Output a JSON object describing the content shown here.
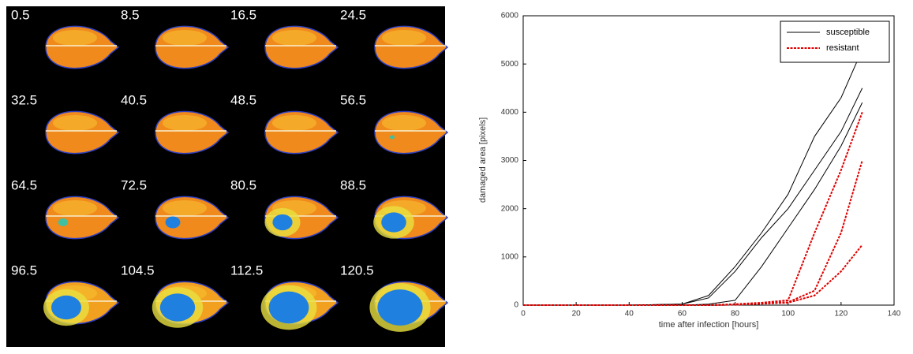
{
  "image_grid": {
    "labels": [
      "0.5",
      "8.5",
      "16.5",
      "24.5",
      "32.5",
      "40.5",
      "48.5",
      "56.5",
      "64.5",
      "72.5",
      "80.5",
      "88.5",
      "96.5",
      "104.5",
      "112.5",
      "120.5"
    ]
  },
  "chart_data": {
    "type": "line",
    "x_label": "time after infection [hours]",
    "y_label": "damaged area [pixels]",
    "x": [
      0,
      20,
      40,
      60,
      70,
      80,
      90,
      100,
      110,
      120,
      128
    ],
    "series": [
      {
        "name": "susceptible",
        "color": "#000000",
        "values": [
          0,
          0,
          0,
          20,
          200,
          800,
          1500,
          2300,
          3500,
          4300,
          5300
        ]
      },
      {
        "color": "#000000",
        "values": [
          0,
          0,
          0,
          20,
          150,
          700,
          1400,
          2000,
          2800,
          3600,
          4500
        ]
      },
      {
        "color": "#000000",
        "values": [
          0,
          0,
          0,
          0,
          20,
          100,
          800,
          1600,
          2400,
          3300,
          4200
        ]
      },
      {
        "name": "resistant",
        "color": "#e00000",
        "values": [
          0,
          0,
          0,
          0,
          0,
          20,
          50,
          100,
          1500,
          2800,
          4000
        ]
      },
      {
        "color": "#e00000",
        "values": [
          0,
          0,
          0,
          0,
          0,
          10,
          30,
          60,
          300,
          1500,
          3000
        ]
      },
      {
        "color": "#e00000",
        "values": [
          0,
          0,
          0,
          0,
          0,
          10,
          30,
          50,
          200,
          700,
          1250
        ]
      }
    ],
    "xlim": [
      0,
      140
    ],
    "xticks": [
      0,
      20,
      40,
      60,
      80,
      100,
      120,
      140
    ],
    "ylim": [
      0,
      6000
    ],
    "yticks": [
      0,
      1000,
      2000,
      3000,
      4000,
      5000,
      6000
    ],
    "legend": "top-right"
  }
}
